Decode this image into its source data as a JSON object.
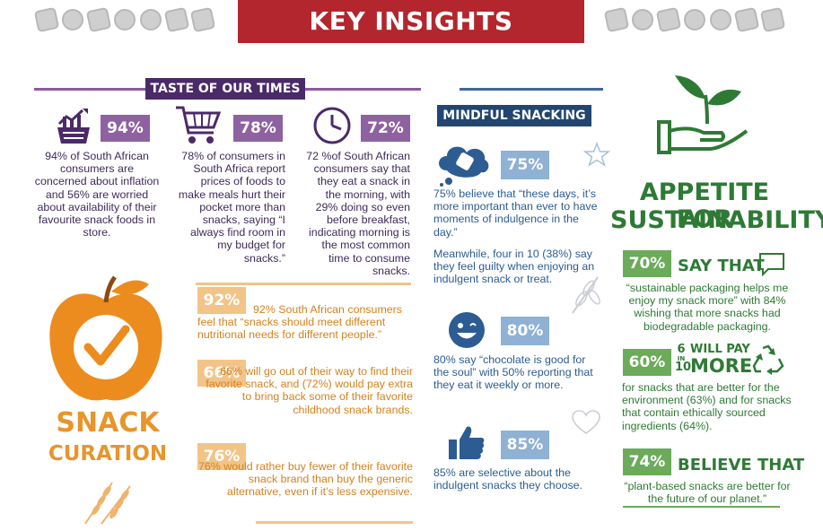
{
  "header": {
    "title": "KEY INSIGHTS"
  },
  "taste": {
    "label": "TASTE OF OUR TIMES",
    "stats": [
      {
        "pct": "94%",
        "text": "94% of South African consumers are concerned about inflation and 56% are worried about availability of their favourite snack foods in store."
      },
      {
        "pct": "78%",
        "text": "78% of consumers in South Africa report prices of foods to make meals hurt their pocket more than snacks, saying “I always find room in my budget for snacks.”"
      },
      {
        "pct": "72%",
        "text": "72 %of South African consumers say that they eat a snack in the morning, with 29% doing so even before breakfast, indicating morning is the most common time to consume snacks."
      }
    ]
  },
  "curation": {
    "title_line1": "SNACK",
    "title_line2": "CURATION",
    "stats": [
      {
        "pct": "92%",
        "text": "92% South African consumers feel that “snacks should meet different nutritional needs for different people.”"
      },
      {
        "pct": "66%",
        "text": "66% will go out of their way to find their favorite snack, and (72%) would pay extra to bring back some of their favorite childhood snack brands."
      },
      {
        "pct": "76%",
        "text": "76% would rather buy fewer of their favorite snack brand than buy the generic alternative, even if it’s less expensive."
      }
    ]
  },
  "mindful": {
    "label": "MINDFUL SNACKING",
    "stats": [
      {
        "pct": "75%",
        "text": "75% believe that “these days, it’s more important than ever to have moments of indulgence in the day.”",
        "extra": "Meanwhile, four in 10 (38%) say they feel guilty when enjoying an indulgent snack or treat."
      },
      {
        "pct": "80%",
        "text": "80% say “chocolate is good for the soul” with 50% reporting that they eat it weekly or more."
      },
      {
        "pct": "85%",
        "text": "85% are selective about the indulgent snacks they choose."
      }
    ]
  },
  "sustain": {
    "title_line1": "APPETITE FOR",
    "title_line2": "SUSTAINABILITY",
    "stats": [
      {
        "pct": "70%",
        "heading": "SAY THAT",
        "text": "“sustainable packaging helps me enjoy my snack more” with 84% wishing that more snacks had biodegradable packaging."
      },
      {
        "pct": "60%",
        "num": "6",
        "mid": "IN",
        "den": "10",
        "heading_top": "WILL PAY",
        "heading_bottom": "MORE",
        "text": "for snacks that are better for the environment (63%)  and for snacks that contain ethically sourced ingredients (64%)."
      },
      {
        "pct": "74%",
        "heading": "BELIEVE THAT",
        "text": "“plant-based snacks are better for the future of our planet.”"
      }
    ]
  },
  "colors": {
    "red": "#b3262d",
    "purple": "#8e62a0",
    "orange": "#e8952b",
    "blue": "#2c5c92",
    "green": "#2e7a35"
  }
}
